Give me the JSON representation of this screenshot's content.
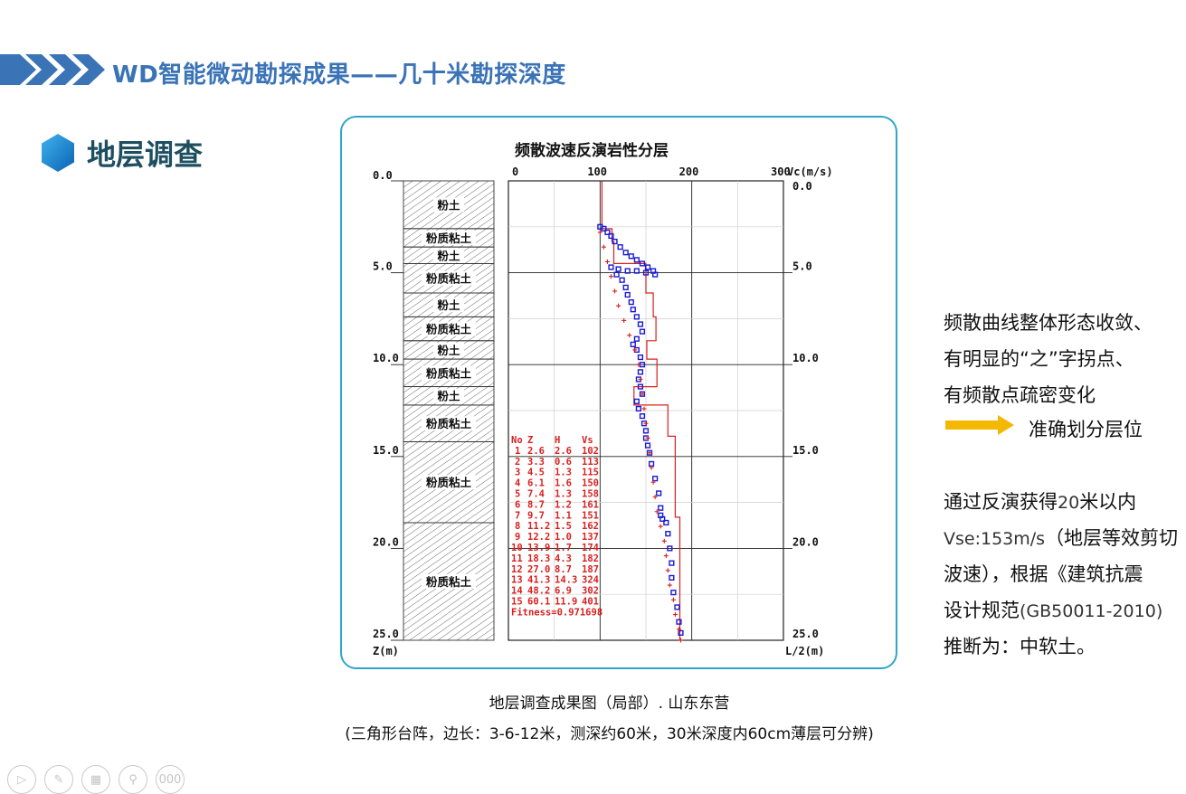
{
  "header": {
    "title": "WD智能微动勘探成果——几十米勘探深度",
    "chevron_color": "#3a73b6"
  },
  "section": {
    "title": "地层调查",
    "icon": "hexagon-icon",
    "icon_color": "#1b8fd6"
  },
  "figure": {
    "title": "频散波速反演岩性分层",
    "top_axis": {
      "ticks": [
        "0",
        "100",
        "200",
        "300"
      ],
      "unit_label": "Vc(m/s)"
    },
    "left_axis": {
      "ticks": [
        "0.0",
        "5.0",
        "10.0",
        "15.0",
        "20.0",
        "25.0"
      ],
      "unit_label": "Z(m)"
    },
    "right_axis": {
      "ticks": [
        "0.0",
        "5.0",
        "10.0",
        "15.0",
        "20.0",
        "25.0"
      ],
      "unit_label": "L/2(m)"
    },
    "layers": [
      {
        "top": 0.0,
        "bottom": 2.6,
        "label": "粉土"
      },
      {
        "top": 2.6,
        "bottom": 3.6,
        "label": "粉质粘土"
      },
      {
        "top": 3.6,
        "bottom": 4.5,
        "label": "粉土"
      },
      {
        "top": 4.5,
        "bottom": 6.1,
        "label": "粉质粘土"
      },
      {
        "top": 6.1,
        "bottom": 7.4,
        "label": "粉土"
      },
      {
        "top": 7.4,
        "bottom": 8.7,
        "label": "粉质粘土"
      },
      {
        "top": 8.7,
        "bottom": 9.7,
        "label": "粉土"
      },
      {
        "top": 9.7,
        "bottom": 11.2,
        "label": "粉质粘土"
      },
      {
        "top": 11.2,
        "bottom": 12.2,
        "label": "粉土"
      },
      {
        "top": 12.2,
        "bottom": 14.2,
        "label": "粉质粘土"
      },
      {
        "top": 14.2,
        "bottom": 18.6,
        "label": "粉质粘土"
      },
      {
        "top": 18.6,
        "bottom": 25.0,
        "label": "粉质粘土"
      }
    ],
    "table": {
      "headers": [
        "No",
        "Z",
        "H",
        "Vs"
      ],
      "rows": [
        [
          "1",
          "2.6",
          "2.6",
          "102"
        ],
        [
          "2",
          "3.3",
          "0.6",
          "113"
        ],
        [
          "3",
          "4.5",
          "1.3",
          "115"
        ],
        [
          "4",
          "6.1",
          "1.6",
          "150"
        ],
        [
          "5",
          "7.4",
          "1.3",
          "158"
        ],
        [
          "6",
          "8.7",
          "1.2",
          "161"
        ],
        [
          "7",
          "9.7",
          "1.1",
          "151"
        ],
        [
          "8",
          "11.2",
          "1.5",
          "162"
        ],
        [
          "9",
          "12.2",
          "1.0",
          "137"
        ],
        [
          "10",
          "13.9",
          "1.7",
          "174"
        ],
        [
          "11",
          "18.3",
          "4.3",
          "182"
        ],
        [
          "12",
          "27.0",
          "8.7",
          "187"
        ],
        [
          "13",
          "41.3",
          "14.3",
          "324"
        ],
        [
          "14",
          "48.2",
          "6.9",
          "302"
        ],
        [
          "15",
          "60.1",
          "11.9",
          "401"
        ]
      ],
      "fitness": "Fitness=0.971698"
    },
    "colors": {
      "model": "#d92020",
      "observed": "#1a1ad0",
      "frame": "#2fa6c9"
    }
  },
  "chart_data": {
    "type": "scatter",
    "title": "频散波速反演岩性分层",
    "xlabel": "Vc(m/s)",
    "ylabel": "Z(m)",
    "xlim": [
      0,
      300
    ],
    "ylim": [
      0,
      25
    ],
    "y_inverted": true,
    "grid": true,
    "series": [
      {
        "style": "step-line",
        "points": [
          [
            102,
            0
          ],
          [
            102,
            2.6
          ],
          [
            113,
            2.6
          ],
          [
            113,
            3.3
          ],
          [
            115,
            3.3
          ],
          [
            115,
            4.5
          ],
          [
            150,
            4.5
          ],
          [
            150,
            6.1
          ],
          [
            158,
            6.1
          ],
          [
            158,
            7.4
          ],
          [
            161,
            7.4
          ],
          [
            161,
            8.7
          ],
          [
            151,
            8.7
          ],
          [
            151,
            9.7
          ],
          [
            162,
            9.7
          ],
          [
            162,
            11.2
          ],
          [
            137,
            11.2
          ],
          [
            137,
            12.2
          ],
          [
            174,
            12.2
          ],
          [
            174,
            13.9
          ],
          [
            182,
            13.9
          ],
          [
            182,
            18.3
          ],
          [
            187,
            18.3
          ],
          [
            187,
            25
          ]
        ]
      },
      {
        "style": "open-square",
        "points": [
          [
            100,
            2.5
          ],
          [
            104,
            2.6
          ],
          [
            108,
            2.8
          ],
          [
            112,
            3.0
          ],
          [
            116,
            3.3
          ],
          [
            122,
            3.6
          ],
          [
            128,
            3.9
          ],
          [
            134,
            4.1
          ],
          [
            140,
            4.3
          ],
          [
            146,
            4.5
          ],
          [
            152,
            4.7
          ],
          [
            158,
            4.9
          ],
          [
            160,
            5.1
          ],
          [
            150,
            5.0
          ],
          [
            140,
            4.9
          ],
          [
            130,
            4.9
          ],
          [
            120,
            4.8
          ],
          [
            112,
            4.7
          ],
          [
            118,
            5.1
          ],
          [
            124,
            5.4
          ],
          [
            128,
            5.8
          ],
          [
            130,
            6.2
          ],
          [
            134,
            6.6
          ],
          [
            136,
            7.0
          ],
          [
            140,
            7.4
          ],
          [
            144,
            7.8
          ],
          [
            146,
            8.2
          ],
          [
            140,
            8.6
          ],
          [
            136,
            8.9
          ],
          [
            140,
            9.2
          ],
          [
            144,
            9.6
          ],
          [
            146,
            10.0
          ],
          [
            144,
            10.4
          ],
          [
            142,
            10.8
          ],
          [
            144,
            11.2
          ],
          [
            146,
            11.6
          ],
          [
            140,
            12.0
          ],
          [
            142,
            12.4
          ],
          [
            146,
            12.8
          ],
          [
            148,
            13.2
          ],
          [
            150,
            13.6
          ],
          [
            150,
            14.0
          ],
          [
            152,
            14.4
          ],
          [
            154,
            14.8
          ],
          [
            156,
            15.4
          ],
          [
            160,
            16.2
          ],
          [
            164,
            17.0
          ],
          [
            166,
            17.8
          ],
          [
            168,
            18.4
          ],
          [
            166,
            18.2
          ],
          [
            172,
            18.6
          ],
          [
            174,
            19.2
          ],
          [
            176,
            20.0
          ],
          [
            178,
            20.8
          ],
          [
            178,
            21.6
          ],
          [
            180,
            22.4
          ],
          [
            184,
            23.2
          ],
          [
            186,
            24.0
          ],
          [
            188,
            24.6
          ]
        ]
      },
      {
        "style": "plus",
        "points": [
          [
            100,
            2.8
          ],
          [
            104,
            3.6
          ],
          [
            108,
            4.4
          ],
          [
            112,
            5.2
          ],
          [
            116,
            6.0
          ],
          [
            120,
            6.8
          ],
          [
            126,
            7.6
          ],
          [
            132,
            8.4
          ],
          [
            138,
            9.2
          ],
          [
            142,
            10.0
          ],
          [
            144,
            10.8
          ],
          [
            146,
            11.6
          ],
          [
            148,
            12.4
          ],
          [
            150,
            13.2
          ],
          [
            152,
            14.0
          ],
          [
            154,
            14.8
          ],
          [
            156,
            15.6
          ],
          [
            158,
            16.4
          ],
          [
            160,
            17.2
          ],
          [
            162,
            18.0
          ],
          [
            166,
            18.8
          ],
          [
            170,
            19.6
          ],
          [
            172,
            20.4
          ],
          [
            174,
            21.2
          ],
          [
            176,
            22.0
          ],
          [
            180,
            22.8
          ],
          [
            182,
            23.6
          ],
          [
            186,
            24.4
          ],
          [
            188,
            25.0
          ]
        ]
      }
    ]
  },
  "caption": {
    "line1": "地层调查成果图（局部）. 山东东营",
    "line2": "(三角形台阵，边长：3-6-12米，测深约60米，30米深度内60cm薄层可分辨)"
  },
  "right_panel": {
    "para1": [
      "频散曲线整体形态收敛、",
      "有明显的“之”字拐点、",
      "有频散点疏密变化"
    ],
    "conclusion_arrow_icon": "yellow-arrow-icon",
    "arrow_color": "#f5b800",
    "conclusion": "准确划分层位",
    "para2_parts": {
      "p1": "通过反演获得",
      "p2": "20",
      "p3": "米以内",
      "p4": "Vse:153m/s",
      "p5": "（地层等效剪切",
      "p6": "波速），根据《建筑抗震",
      "p7": "设计规范",
      "p8": "(GB50011-2010)",
      "p9": "推断为：中软土。"
    }
  },
  "nav": {
    "icons": [
      "play-icon",
      "pen-icon",
      "slides-icon",
      "zoom-icon",
      "more-icon"
    ],
    "more_label": "000"
  }
}
